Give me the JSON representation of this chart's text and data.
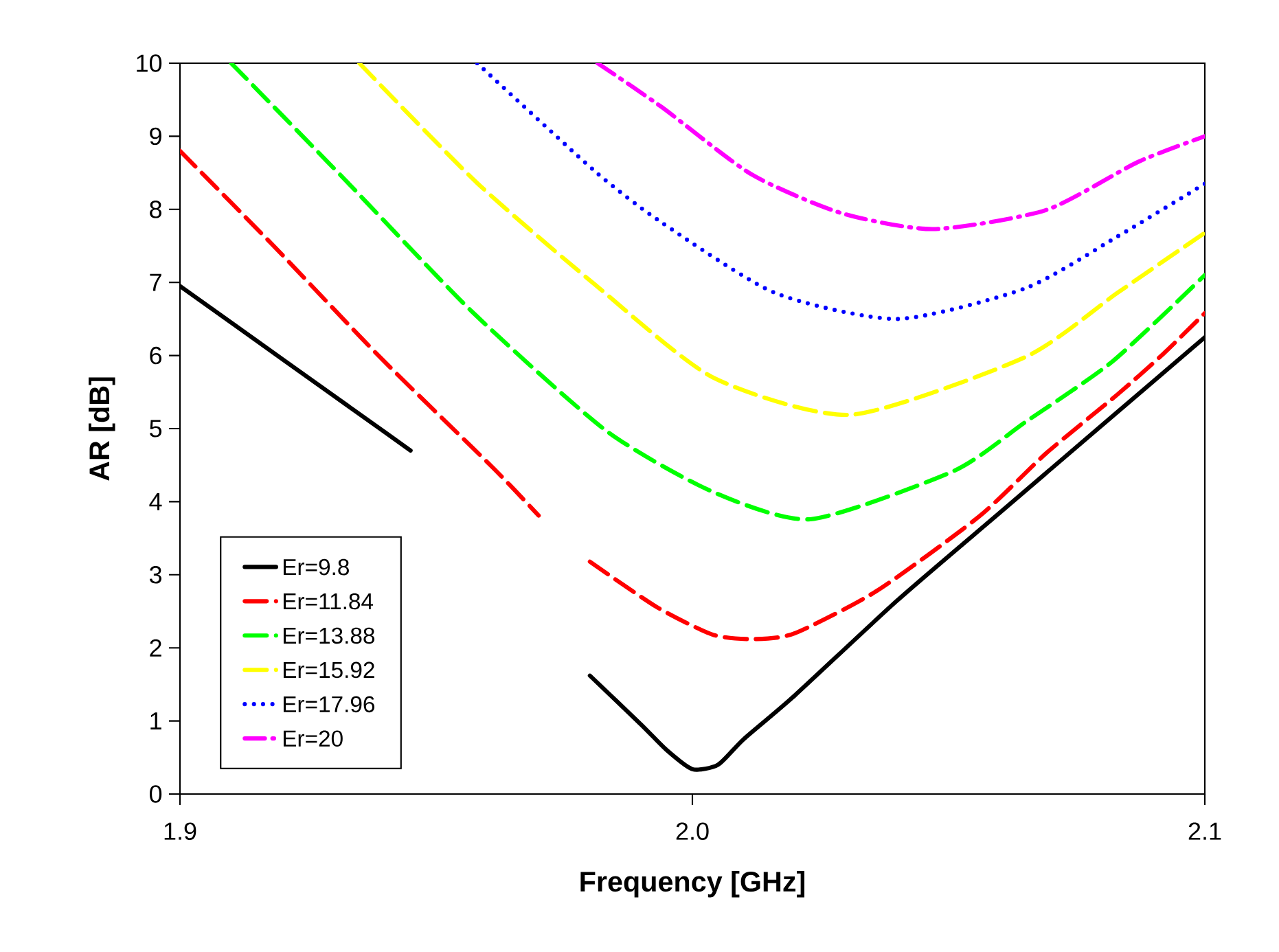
{
  "chart_data": {
    "type": "line",
    "xlabel": "Frequency [GHz]",
    "ylabel": "AR [dB]",
    "xlim": [
      1.9,
      2.1
    ],
    "ylim": [
      0,
      10
    ],
    "xticks": [
      1.9,
      {
        "value": 2.0,
        "label": "2.0"
      },
      2.1
    ],
    "yticks": [
      0,
      1,
      2,
      3,
      4,
      5,
      6,
      7,
      8,
      9,
      10
    ],
    "grid": false,
    "legend": "bottom left",
    "series": [
      {
        "name": "Er=9.8",
        "color": "#000000",
        "line_style": "solid",
        "x": [
          1.9,
          1.92,
          1.94,
          1.945,
          1.95,
          1.96,
          1.97,
          1.98,
          1.99,
          1.995,
          2.0,
          2.005,
          2.01,
          2.02,
          2.04,
          2.06,
          2.08,
          2.1
        ],
        "values": [
          6.95,
          5.95,
          4.95,
          4.7,
          null,
          null,
          null,
          1.62,
          0.95,
          0.6,
          0.34,
          0.4,
          0.75,
          1.35,
          2.65,
          3.85,
          5.05,
          6.25
        ]
      },
      {
        "name": "Er=11.84",
        "color": "#ff0000",
        "line_style": "dashed",
        "x": [
          1.9,
          1.918,
          1.939,
          1.961,
          1.97,
          1.975,
          1.98,
          1.993,
          2.004,
          2.012,
          2.02,
          2.036,
          2.056,
          2.069,
          2.083,
          2.092,
          2.1
        ],
        "values": [
          8.8,
          7.52,
          5.98,
          4.47,
          3.81,
          null,
          3.18,
          2.56,
          2.18,
          2.12,
          2.2,
          2.78,
          3.8,
          4.66,
          5.47,
          6.03,
          6.58
        ]
      },
      {
        "name": "Er=13.88",
        "color": "#00ff00",
        "line_style": "dashed",
        "x": [
          1.91,
          1.932,
          1.957,
          1.983,
          2.0035,
          2.023,
          2.051,
          2.065,
          2.082,
          2.1
        ],
        "values": [
          10,
          8.42,
          6.6,
          4.98,
          4.15,
          3.76,
          4.42,
          5.09,
          5.92,
          7.1
        ]
      },
      {
        "name": "Er=15.92",
        "color": "#ffff00",
        "line_style": "dashed",
        "x": [
          1.935,
          1.958,
          1.981,
          2.004,
          2.031,
          2.065,
          2.083,
          2.1
        ],
        "values": [
          10,
          8.36,
          6.97,
          5.7,
          5.19,
          5.98,
          6.86,
          7.68
        ]
      },
      {
        "name": "Er=17.96",
        "color": "#0000ff",
        "line_style": "dotted",
        "x": [
          1.958,
          1.981,
          1.994,
          2.016,
          2.04,
          2.065,
          2.083,
          2.1
        ],
        "values": [
          10,
          8.52,
          7.82,
          6.86,
          6.5,
          6.92,
          7.63,
          8.35
        ]
      },
      {
        "name": "Er=20",
        "color": "#ff00ff",
        "line_style": "dashdot",
        "x": [
          1.9815,
          1.994,
          2.0115,
          2.029,
          2.047,
          2.069,
          2.087,
          2.1
        ],
        "values": [
          10,
          9.4,
          8.48,
          7.95,
          7.73,
          7.99,
          8.65,
          9.0
        ]
      }
    ]
  }
}
